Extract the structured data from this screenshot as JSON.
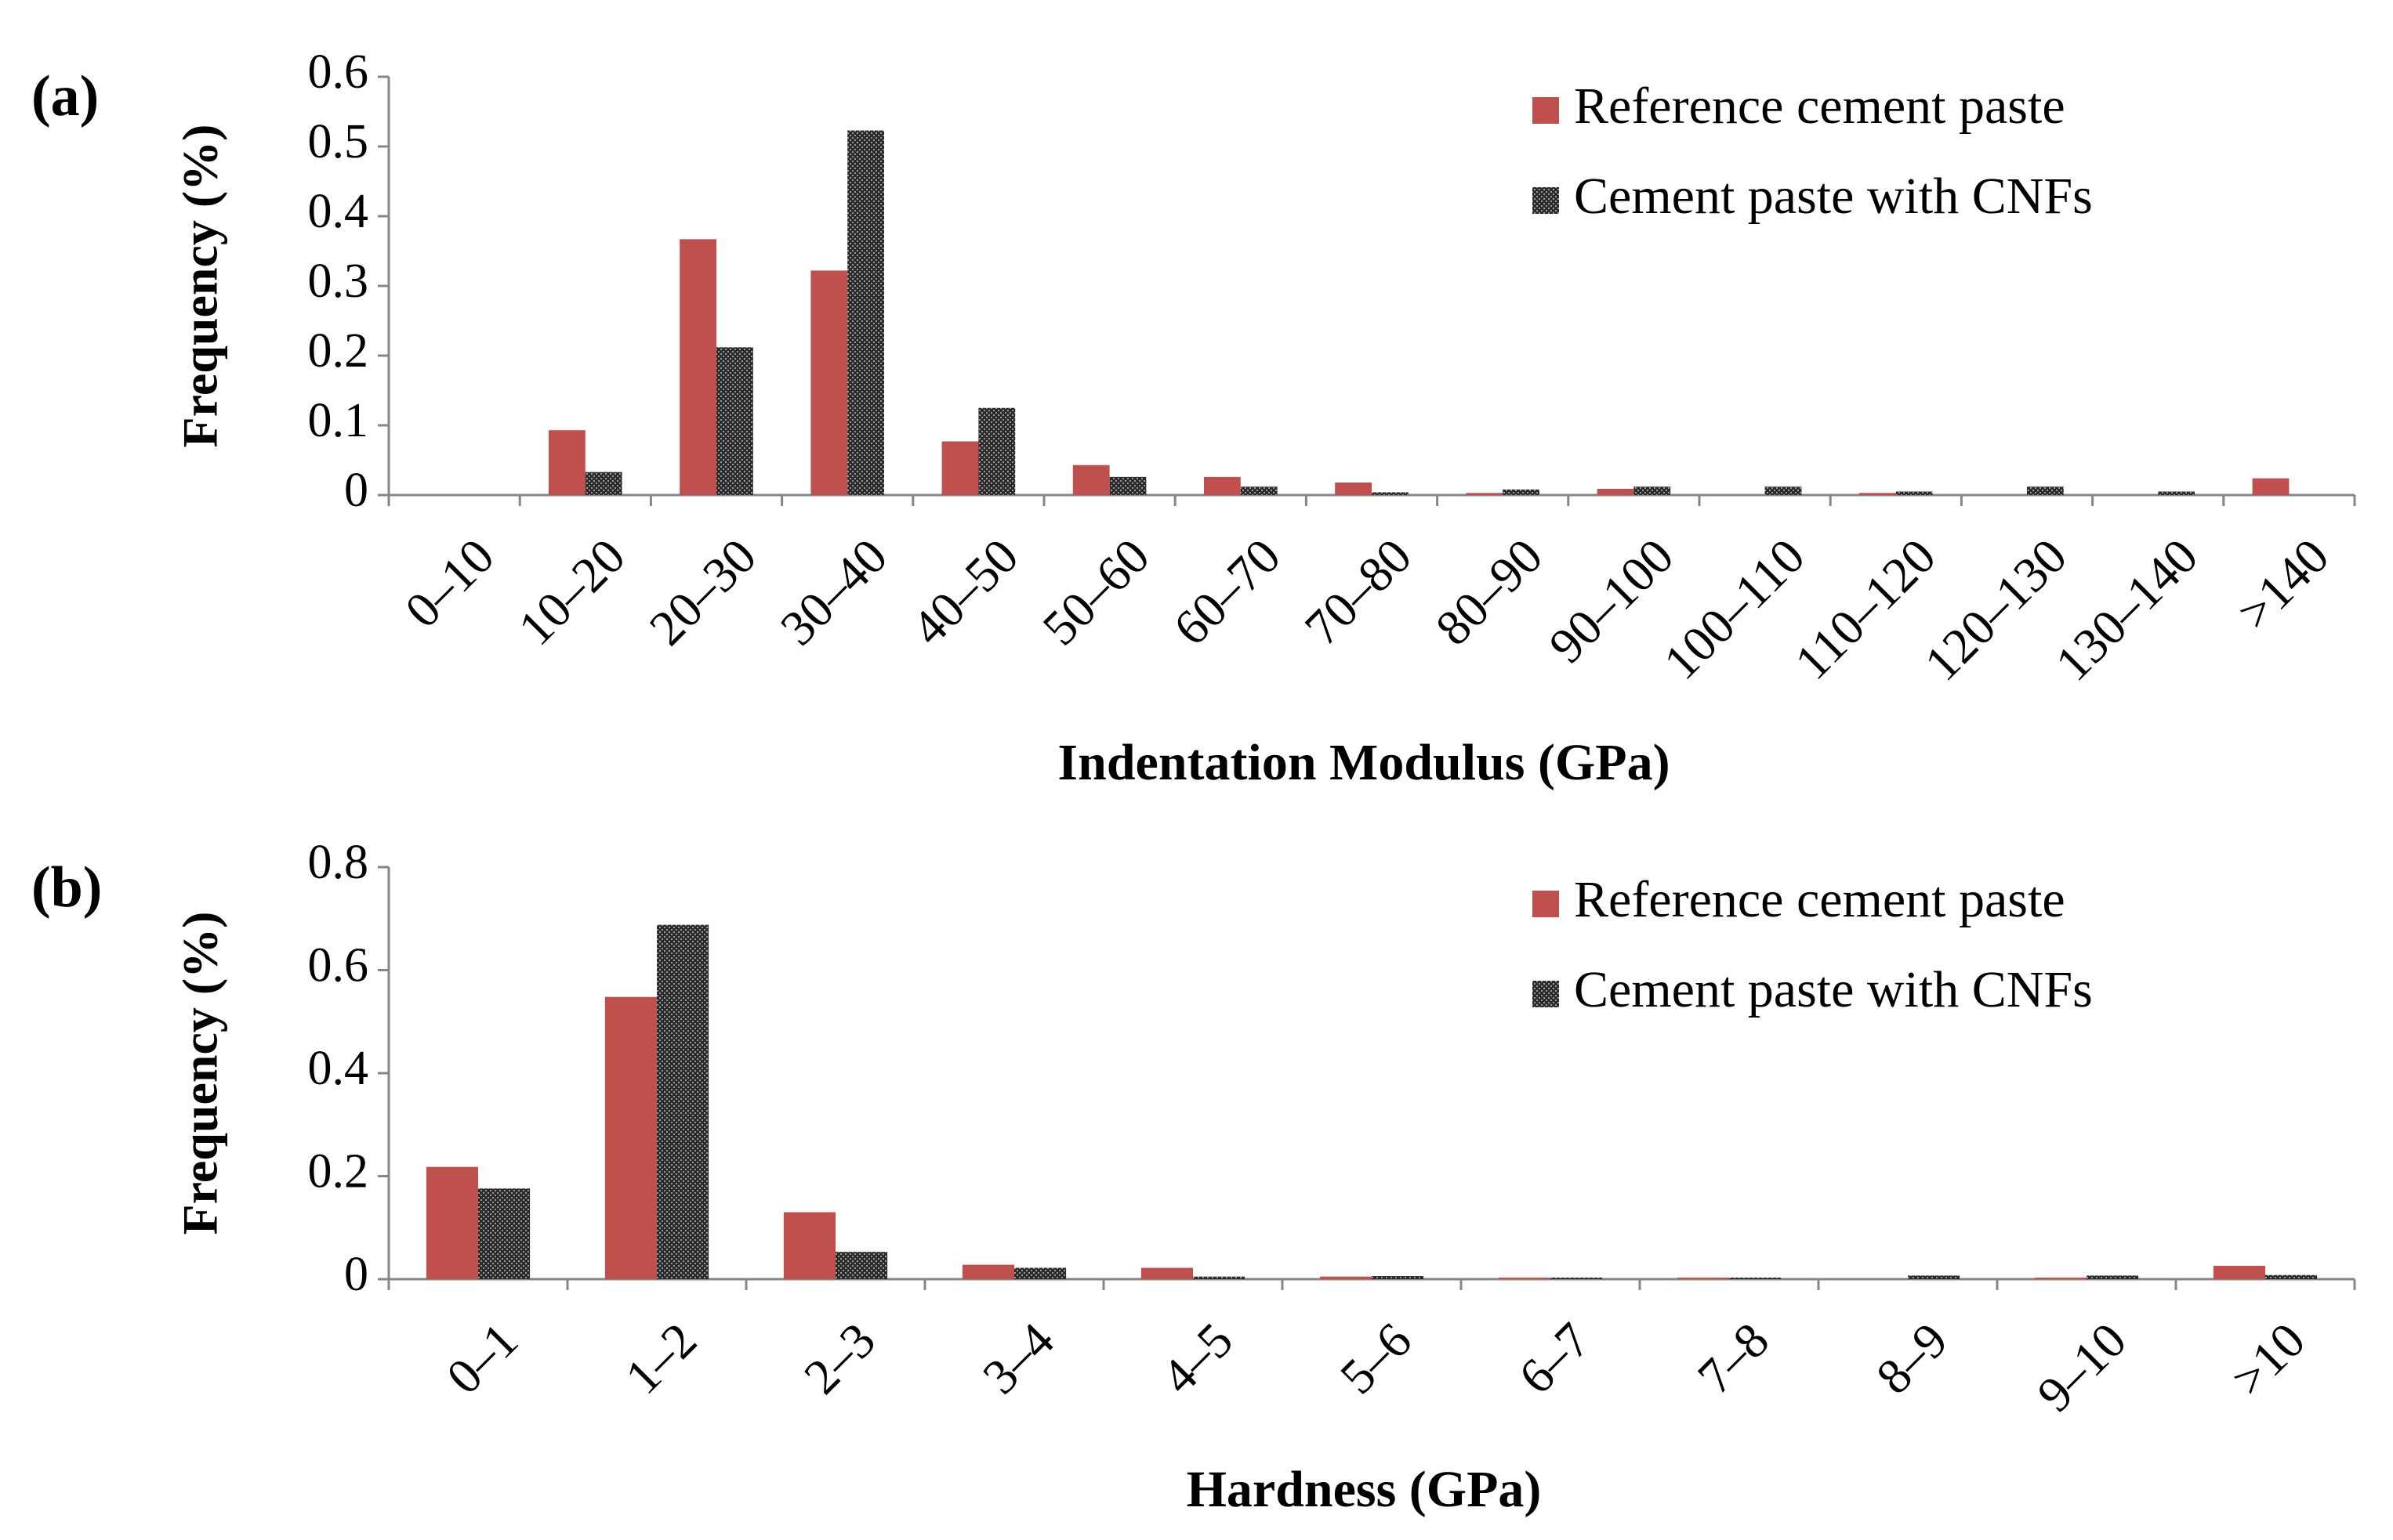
{
  "chart_data": [
    {
      "type": "bar",
      "panel_label": "(a)",
      "xlabel": "Indentation Modulus (GPa)",
      "ylabel": "Frequency (%)",
      "categories": [
        "0–10",
        "10–20",
        "20–30",
        "30–40",
        "40–50",
        "50–60",
        "60–70",
        "70–80",
        "80–90",
        "90–100",
        "100–110",
        "110–120",
        "120–130",
        "130–140",
        ">140"
      ],
      "series": [
        {
          "name": "Reference cement paste",
          "color": "#c0504d",
          "values": [
            0,
            0.093,
            0.367,
            0.322,
            0.077,
            0.043,
            0.026,
            0.018,
            0.003,
            0.009,
            0,
            0.003,
            0,
            0,
            0.024
          ]
        },
        {
          "name": "Cement paste with CNFs",
          "color": "#2b2b2b",
          "values": [
            0,
            0.033,
            0.212,
            0.523,
            0.125,
            0.026,
            0.012,
            0.004,
            0.008,
            0.012,
            0.012,
            0.005,
            0.012,
            0.005,
            0
          ]
        }
      ],
      "ylim": [
        0,
        0.6
      ],
      "yticks": [
        0,
        0.1,
        0.2,
        0.3,
        0.4,
        0.5,
        0.6
      ],
      "legend": "upper right"
    },
    {
      "type": "bar",
      "panel_label": "(b)",
      "xlabel": "Hardness (GPa)",
      "ylabel": "Frequency (%)",
      "categories": [
        "0–1",
        "1–2",
        "2–3",
        "3–4",
        "4–5",
        "5–6",
        "6–7",
        "7–8",
        "8–9",
        "9–10",
        ">10"
      ],
      "series": [
        {
          "name": "Reference cement paste",
          "color": "#c0504d",
          "values": [
            0.218,
            0.548,
            0.13,
            0.028,
            0.022,
            0.005,
            0.003,
            0.003,
            0,
            0.003,
            0.026
          ]
        },
        {
          "name": "Cement paste with CNFs",
          "color": "#2b2b2b",
          "values": [
            0.176,
            0.688,
            0.053,
            0.022,
            0.005,
            0.006,
            0.003,
            0.003,
            0.007,
            0.007,
            0.008
          ]
        }
      ],
      "ylim": [
        0,
        0.8
      ],
      "yticks": [
        0,
        0.2,
        0.4,
        0.6,
        0.8
      ],
      "legend": "upper right"
    }
  ]
}
